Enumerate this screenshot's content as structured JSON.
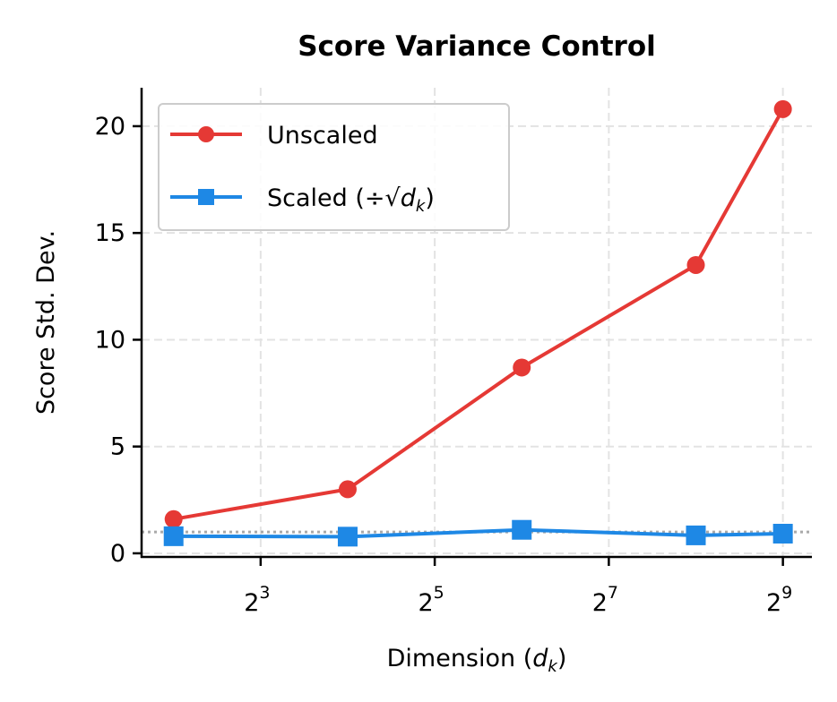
{
  "chart_data": {
    "type": "line",
    "title": "Score Variance Control",
    "xlabel": "Dimension (d_k)",
    "xlabel_parts": {
      "text": "Dimension (",
      "var": "d",
      "sub": "k",
      "close": ")"
    },
    "ylabel": "Score Std. Dev.",
    "x_scale": "log2",
    "xlim": [
      3.1,
      645
    ],
    "ylim": [
      -0.17,
      21.8
    ],
    "x_ticks": [
      {
        "base": "2",
        "exp": "3",
        "value": 8
      },
      {
        "base": "2",
        "exp": "5",
        "value": 32
      },
      {
        "base": "2",
        "exp": "7",
        "value": 128
      },
      {
        "base": "2",
        "exp": "9",
        "value": 512
      }
    ],
    "y_ticks": [
      0,
      5,
      10,
      15,
      20
    ],
    "grid": true,
    "legend_position": "top-left",
    "reference_line": {
      "y": 1,
      "color": "#aaaaaa",
      "style": "dotted"
    },
    "x": [
      4,
      16,
      64,
      256,
      512
    ],
    "series": [
      {
        "name": "Unscaled",
        "color": "#e53935",
        "marker": "circle",
        "values": [
          1.6,
          3.0,
          8.7,
          13.5,
          20.8
        ]
      },
      {
        "name": "Scaled (÷√d_k)",
        "legend_parts": {
          "text": "Scaled (÷",
          "var": "d",
          "sub": "k",
          "close": ")"
        },
        "color": "#1e88e5",
        "marker": "square",
        "values": [
          0.8,
          0.78,
          1.1,
          0.84,
          0.92
        ]
      }
    ]
  }
}
